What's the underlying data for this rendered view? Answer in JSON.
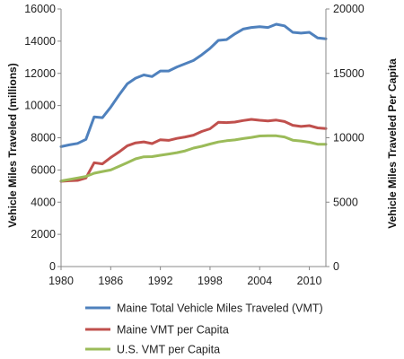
{
  "chart_data": {
    "type": "line",
    "title": "",
    "xlabel": "",
    "ylabel": "Vehicle Miles Traveled (millions)",
    "y2label": "Vehicle Miles Traveled Per Capita",
    "xlim": [
      1980,
      2012
    ],
    "ylim": [
      0,
      16000
    ],
    "y2lim": [
      0,
      20000
    ],
    "x_ticks": [
      "1980",
      "1986",
      "1992",
      "1998",
      "2004",
      "2010"
    ],
    "y_ticks": [
      "0",
      "2000",
      "4000",
      "6000",
      "8000",
      "10000",
      "12000",
      "14000",
      "16000"
    ],
    "y2_ticks": [
      "0",
      "5000",
      "10000",
      "15000",
      "20000"
    ],
    "grid": false,
    "legend_position": "bottom",
    "x": [
      1980,
      1981,
      1982,
      1983,
      1984,
      1985,
      1986,
      1987,
      1988,
      1989,
      1990,
      1991,
      1992,
      1993,
      1994,
      1995,
      1996,
      1997,
      1998,
      1999,
      2000,
      2001,
      2002,
      2003,
      2004,
      2005,
      2006,
      2007,
      2008,
      2009,
      2010,
      2011,
      2012
    ],
    "series": [
      {
        "name": "Maine Total Vehicle Miles Traveled (VMT)",
        "axis": "left",
        "color": "#4f81bd",
        "values": [
          7450,
          7560,
          7650,
          7900,
          9300,
          9250,
          9900,
          10650,
          11350,
          11700,
          11900,
          11800,
          12150,
          12150,
          12400,
          12600,
          12800,
          13150,
          13550,
          14050,
          14100,
          14450,
          14750,
          14850,
          14900,
          14850,
          15050,
          14950,
          14550,
          14500,
          14550,
          14200,
          14150
        ]
      },
      {
        "name": "Maine VMT per Capita",
        "axis": "right",
        "color": "#c0504d",
        "values": [
          6620,
          6660,
          6690,
          6880,
          8060,
          7970,
          8470,
          8890,
          9380,
          9600,
          9680,
          9550,
          9850,
          9800,
          9950,
          10060,
          10200,
          10490,
          10700,
          11200,
          11180,
          11220,
          11340,
          11430,
          11360,
          11310,
          11370,
          11260,
          10970,
          10880,
          10940,
          10770,
          10720
        ]
      },
      {
        "name": "U.S. VMT per Capita",
        "axis": "right",
        "color": "#9bbb59",
        "values": [
          6650,
          6760,
          6880,
          7000,
          7250,
          7380,
          7500,
          7780,
          8060,
          8360,
          8520,
          8540,
          8640,
          8740,
          8840,
          8980,
          9200,
          9340,
          9510,
          9670,
          9770,
          9830,
          9940,
          10030,
          10140,
          10160,
          10150,
          10060,
          9810,
          9750,
          9650,
          9500,
          9500
        ]
      }
    ]
  }
}
